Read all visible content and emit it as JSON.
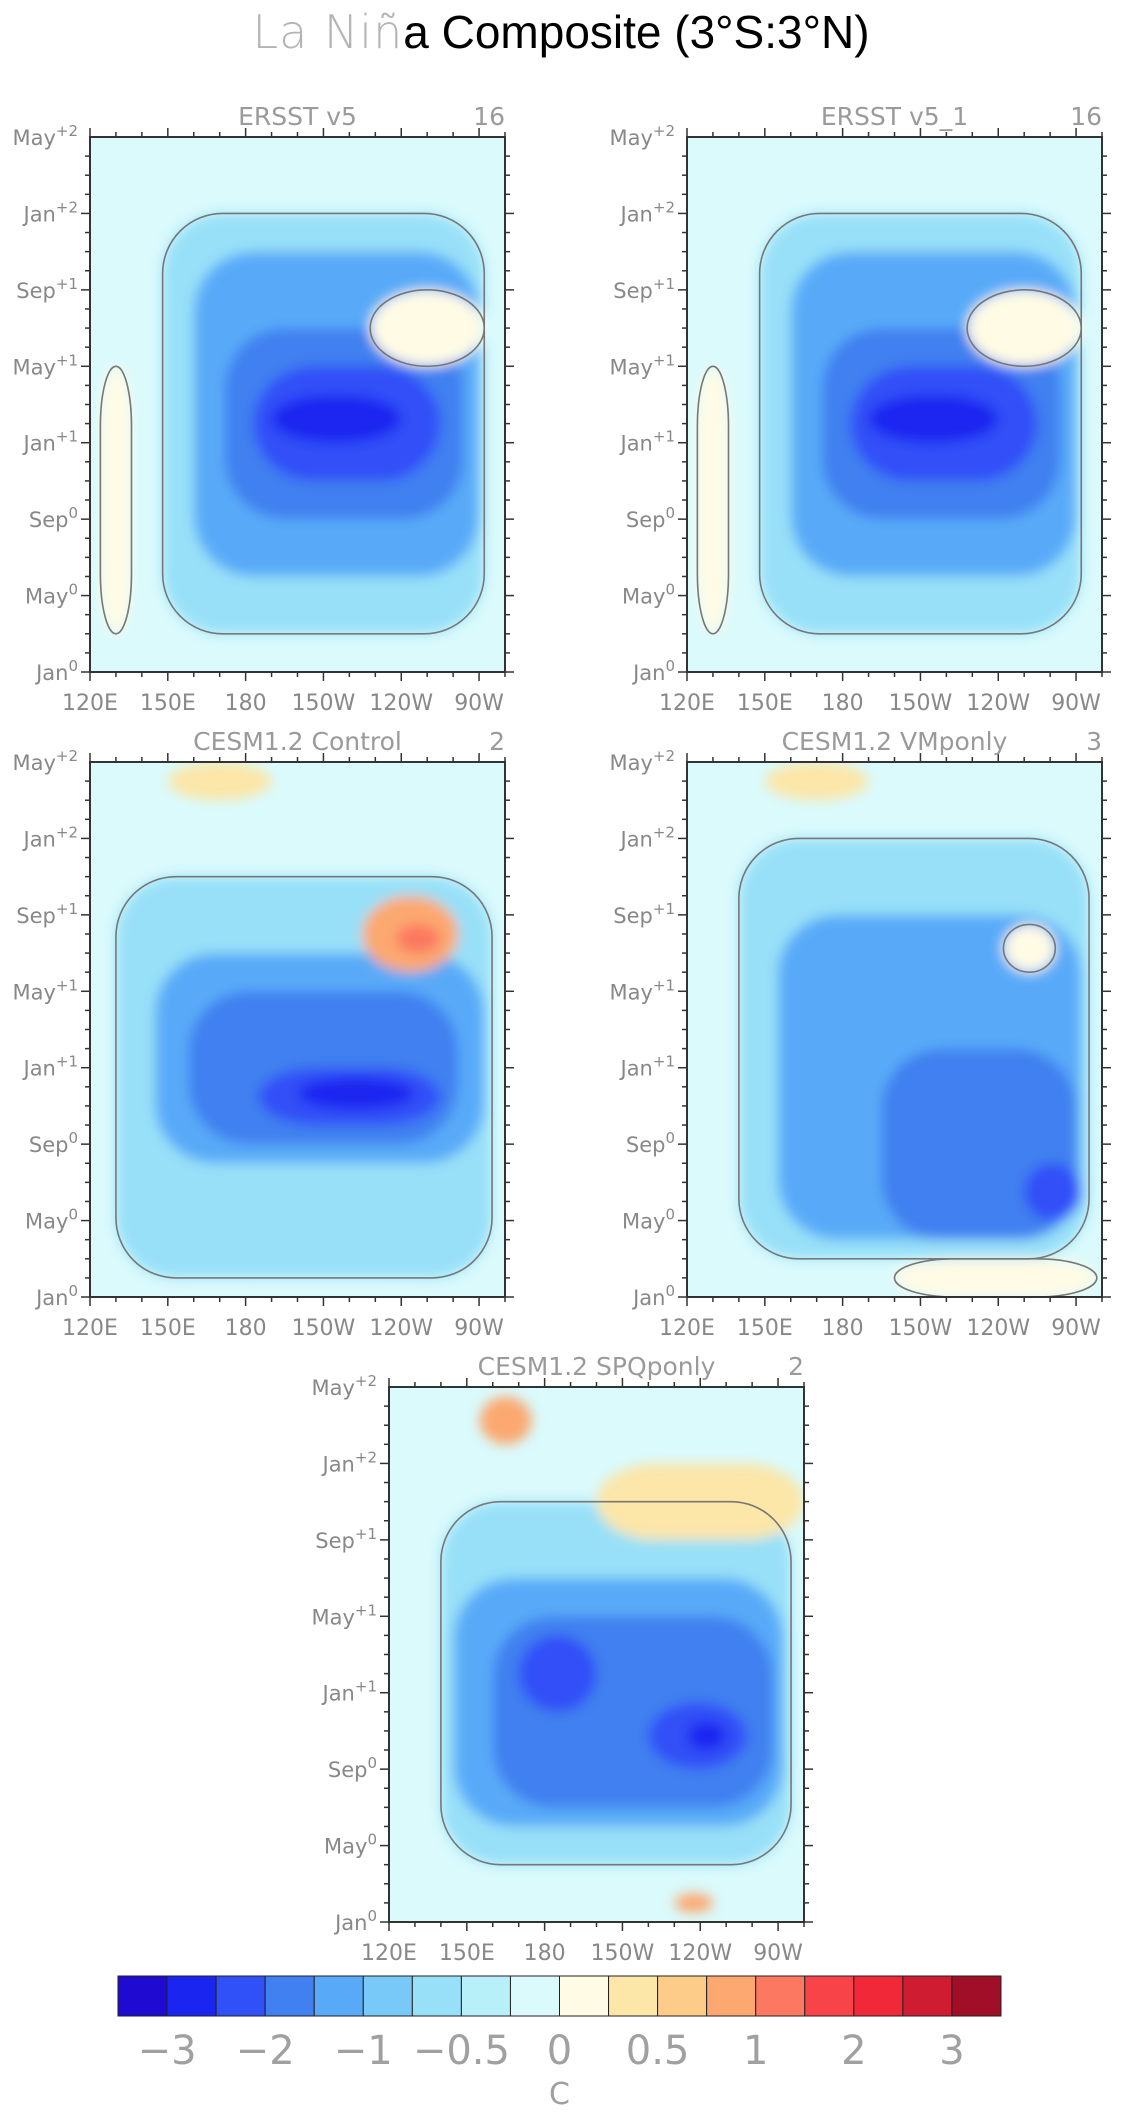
{
  "figure": {
    "title_light": "La Niñ",
    "title_dark": "a Composite (3°S:3°N)"
  },
  "chart_data": [
    {
      "type": "heatmap",
      "title": "ERSST v5",
      "count_label": "16",
      "x_tick_labels": [
        "120E",
        "150E",
        "180",
        "150W",
        "120W",
        "90W"
      ],
      "y_tick_labels": [
        "Jan0",
        "May0",
        "Sep0",
        "Jan+1",
        "May+1",
        "Sep+1",
        "Jan+2",
        "May+2"
      ],
      "x_range": [
        120,
        280
      ],
      "y_range_months": [
        0,
        28
      ],
      "units": "C",
      "features": [
        {
          "value": -0.5,
          "lon": [
            148,
            272
          ],
          "month": [
            2,
            24
          ]
        },
        {
          "value": -1.0,
          "lon": [
            160,
            270
          ],
          "month": [
            5,
            22
          ]
        },
        {
          "value": -1.5,
          "lon": [
            172,
            264
          ],
          "month": [
            8,
            18
          ]
        },
        {
          "value": -2.0,
          "lon": [
            183,
            255
          ],
          "month": [
            10,
            16
          ]
        },
        {
          "value": -2.5,
          "lon": [
            190,
            240
          ],
          "month": [
            12,
            14.5
          ]
        },
        {
          "value": 0.3,
          "lon": [
            124,
            136
          ],
          "month": [
            2,
            16
          ]
        },
        {
          "value": 0.3,
          "lon": [
            228,
            272
          ],
          "month": [
            16,
            20
          ]
        }
      ]
    },
    {
      "type": "heatmap",
      "title": "ERSST v5_1",
      "count_label": "16",
      "x_tick_labels": [
        "120E",
        "150E",
        "180",
        "150W",
        "120W",
        "90W"
      ],
      "y_tick_labels": [
        "Jan0",
        "May0",
        "Sep0",
        "Jan+1",
        "May+1",
        "Sep+1",
        "Jan+2",
        "May+2"
      ],
      "x_range": [
        120,
        280
      ],
      "y_range_months": [
        0,
        28
      ],
      "units": "C",
      "features": [
        {
          "value": -0.5,
          "lon": [
            148,
            272
          ],
          "month": [
            2,
            24
          ]
        },
        {
          "value": -1.0,
          "lon": [
            160,
            270
          ],
          "month": [
            5,
            22
          ]
        },
        {
          "value": -1.5,
          "lon": [
            172,
            264
          ],
          "month": [
            8,
            18
          ]
        },
        {
          "value": -2.0,
          "lon": [
            183,
            255
          ],
          "month": [
            10,
            16
          ]
        },
        {
          "value": -2.5,
          "lon": [
            190,
            240
          ],
          "month": [
            12,
            14.5
          ]
        },
        {
          "value": 0.3,
          "lon": [
            124,
            136
          ],
          "month": [
            2,
            16
          ]
        },
        {
          "value": 0.3,
          "lon": [
            228,
            272
          ],
          "month": [
            16,
            20
          ]
        }
      ]
    },
    {
      "type": "heatmap",
      "title": "CESM1.2 Control",
      "count_label": "2",
      "x_tick_labels": [
        "120E",
        "150E",
        "180",
        "150W",
        "120W",
        "90W"
      ],
      "y_tick_labels": [
        "Jan0",
        "May0",
        "Sep0",
        "Jan+1",
        "May+1",
        "Sep+1",
        "Jan+2",
        "May+2"
      ],
      "x_range": [
        120,
        280
      ],
      "y_range_months": [
        0,
        28
      ],
      "units": "C",
      "features": [
        {
          "value": -0.5,
          "lon": [
            130,
            275
          ],
          "month": [
            1,
            22
          ]
        },
        {
          "value": -1.0,
          "lon": [
            145,
            272
          ],
          "month": [
            7,
            18
          ]
        },
        {
          "value": -1.5,
          "lon": [
            158,
            262
          ],
          "month": [
            8,
            16
          ]
        },
        {
          "value": -2.0,
          "lon": [
            185,
            255
          ],
          "month": [
            9,
            12
          ]
        },
        {
          "value": -2.5,
          "lon": [
            200,
            245
          ],
          "month": [
            9.8,
            11.5
          ]
        },
        {
          "value": 1.0,
          "lon": [
            225,
            262
          ],
          "month": [
            17,
            21
          ]
        },
        {
          "value": 1.5,
          "lon": [
            238,
            255
          ],
          "month": [
            18,
            19.5
          ]
        },
        {
          "value": 0.5,
          "lon": [
            150,
            190
          ],
          "month": [
            26,
            28
          ]
        }
      ]
    },
    {
      "type": "heatmap",
      "title": "CESM1.2 VMponly",
      "count_label": "3",
      "x_tick_labels": [
        "120E",
        "150E",
        "180",
        "150W",
        "120W",
        "90W"
      ],
      "y_tick_labels": [
        "Jan0",
        "May0",
        "Sep0",
        "Jan+1",
        "May+1",
        "Sep+1",
        "Jan+2",
        "May+2"
      ],
      "x_range": [
        120,
        280
      ],
      "y_range_months": [
        0,
        28
      ],
      "units": "C",
      "features": [
        {
          "value": -0.5,
          "lon": [
            140,
            275
          ],
          "month": [
            2,
            24
          ]
        },
        {
          "value": -1.0,
          "lon": [
            155,
            272
          ],
          "month": [
            3,
            20
          ]
        },
        {
          "value": -1.5,
          "lon": [
            195,
            270
          ],
          "month": [
            3,
            13
          ]
        },
        {
          "value": -2.0,
          "lon": [
            250,
            272
          ],
          "month": [
            4,
            7
          ]
        },
        {
          "value": 0.5,
          "lon": [
            150,
            190
          ],
          "month": [
            26,
            28
          ]
        },
        {
          "value": 0.3,
          "lon": [
            242,
            262
          ],
          "month": [
            17,
            19.5
          ]
        },
        {
          "value": 0.3,
          "lon": [
            200,
            278
          ],
          "month": [
            0,
            2
          ]
        }
      ]
    },
    {
      "type": "heatmap",
      "title": "CESM1.2 SPQponly",
      "count_label": "2",
      "x_tick_labels": [
        "120E",
        "150E",
        "180",
        "150W",
        "120W",
        "90W"
      ],
      "y_tick_labels": [
        "Jan0",
        "May0",
        "Sep0",
        "Jan+1",
        "May+1",
        "Sep+1",
        "Jan+2",
        "May+2"
      ],
      "x_range": [
        120,
        280
      ],
      "y_range_months": [
        0,
        28
      ],
      "units": "C",
      "features": [
        {
          "value": -0.5,
          "lon": [
            140,
            275
          ],
          "month": [
            3,
            22
          ]
        },
        {
          "value": -1.0,
          "lon": [
            145,
            272
          ],
          "month": [
            5,
            18
          ]
        },
        {
          "value": -1.5,
          "lon": [
            160,
            268
          ],
          "month": [
            6,
            16
          ]
        },
        {
          "value": -2.0,
          "lon": [
            170,
            200
          ],
          "month": [
            11,
            15
          ]
        },
        {
          "value": -2.0,
          "lon": [
            220,
            258
          ],
          "month": [
            8,
            11.5
          ]
        },
        {
          "value": -2.5,
          "lon": [
            235,
            250
          ],
          "month": [
            9,
            10.5
          ]
        },
        {
          "value": 1.0,
          "lon": [
            155,
            175
          ],
          "month": [
            25,
            27.5
          ]
        },
        {
          "value": 0.5,
          "lon": [
            200,
            280
          ],
          "month": [
            20,
            24
          ]
        },
        {
          "value": 1.0,
          "lon": [
            230,
            245
          ],
          "month": [
            0.5,
            1.5
          ]
        }
      ]
    }
  ],
  "colorbar": {
    "type": "colorbar",
    "units": "C",
    "tick_labels": [
      "−3",
      "−2",
      "−1",
      "−0.5",
      "0",
      "0.5",
      "1",
      "2",
      "3"
    ],
    "colors": [
      "#1e0ad0",
      "#1a26f0",
      "#3050f8",
      "#4080f0",
      "#58aaf8",
      "#78c8f8",
      "#98e0f8",
      "#b8f0fa",
      "#dafafc",
      "#fffbe5",
      "#fce6a8",
      "#fccc88",
      "#fca870",
      "#fc7860",
      "#f84448",
      "#f02838",
      "#d01c30",
      "#a00e28"
    ]
  }
}
